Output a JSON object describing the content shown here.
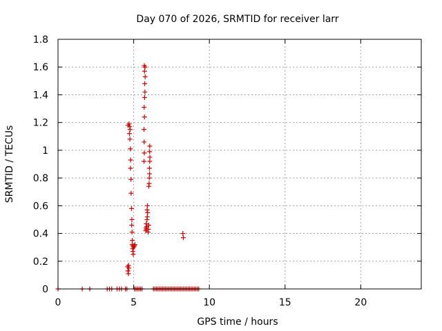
{
  "chart_data": {
    "type": "scatter",
    "title": "Day 070 of 2026, SRMTID for receiver larr",
    "xlabel": "GPS time / hours",
    "ylabel": "SRMTID / TECUs",
    "xlim": [
      0,
      24
    ],
    "ylim": [
      0,
      1.8
    ],
    "x_ticks": [
      0,
      5,
      10,
      15,
      20
    ],
    "x_tick_labels": [
      "0",
      "5",
      "10",
      "15",
      "20"
    ],
    "y_ticks": [
      0,
      0.2,
      0.4,
      0.6,
      0.8,
      1.0,
      1.2,
      1.4,
      1.6,
      1.8
    ],
    "y_tick_labels": [
      "0",
      "0.2",
      "0.4",
      "0.6",
      "0.8",
      "1",
      "1.2",
      "1.4",
      "1.6",
      "1.8"
    ],
    "grid": true,
    "marker": "+",
    "color": "#cc0000",
    "series": [
      {
        "name": "SRMTID",
        "points": [
          [
            0.0,
            0.0
          ],
          [
            1.6,
            0.0
          ],
          [
            2.1,
            0.0
          ],
          [
            3.25,
            0.0
          ],
          [
            3.4,
            0.0
          ],
          [
            3.55,
            0.0
          ],
          [
            3.9,
            0.0
          ],
          [
            4.05,
            0.0
          ],
          [
            4.2,
            0.0
          ],
          [
            4.45,
            0.0
          ],
          [
            4.55,
            0.0
          ],
          [
            5.05,
            0.0
          ],
          [
            5.15,
            0.0
          ],
          [
            5.25,
            0.0
          ],
          [
            5.35,
            0.0
          ],
          [
            5.45,
            0.0
          ],
          [
            5.55,
            0.0
          ],
          [
            6.3,
            0.0
          ],
          [
            6.4,
            0.0
          ],
          [
            6.5,
            0.0
          ],
          [
            6.6,
            0.0
          ],
          [
            6.7,
            0.0
          ],
          [
            6.8,
            0.0
          ],
          [
            6.9,
            0.0
          ],
          [
            7.0,
            0.0
          ],
          [
            7.1,
            0.0
          ],
          [
            7.2,
            0.0
          ],
          [
            7.3,
            0.0
          ],
          [
            7.4,
            0.0
          ],
          [
            7.5,
            0.0
          ],
          [
            7.6,
            0.0
          ],
          [
            7.7,
            0.0
          ],
          [
            7.8,
            0.0
          ],
          [
            7.9,
            0.0
          ],
          [
            8.0,
            0.0
          ],
          [
            8.1,
            0.0
          ],
          [
            8.2,
            0.0
          ],
          [
            8.3,
            0.0
          ],
          [
            8.4,
            0.0
          ],
          [
            8.5,
            0.0
          ],
          [
            8.6,
            0.0
          ],
          [
            8.7,
            0.0
          ],
          [
            8.8,
            0.0
          ],
          [
            8.9,
            0.0
          ],
          [
            9.0,
            0.0
          ],
          [
            9.1,
            0.0
          ],
          [
            9.2,
            0.0
          ],
          [
            9.3,
            0.0
          ],
          [
            4.65,
            0.11
          ],
          [
            4.62,
            0.13
          ],
          [
            4.68,
            0.15
          ],
          [
            4.6,
            0.16
          ],
          [
            4.66,
            0.17
          ],
          [
            4.63,
            1.18
          ],
          [
            4.7,
            1.19
          ],
          [
            4.74,
            1.17
          ],
          [
            4.76,
            1.15
          ],
          [
            4.72,
            1.12
          ],
          [
            4.75,
            1.08
          ],
          [
            4.78,
            1.01
          ],
          [
            4.8,
            0.93
          ],
          [
            4.79,
            0.87
          ],
          [
            4.82,
            0.79
          ],
          [
            4.83,
            0.69
          ],
          [
            4.86,
            0.58
          ],
          [
            4.88,
            0.5
          ],
          [
            4.87,
            0.46
          ],
          [
            4.89,
            0.41
          ],
          [
            4.91,
            0.35
          ],
          [
            4.9,
            0.32
          ],
          [
            4.93,
            0.29
          ],
          [
            4.95,
            0.27
          ],
          [
            4.97,
            0.25
          ],
          [
            5.0,
            0.3
          ],
          [
            5.05,
            0.31
          ],
          [
            5.08,
            0.32
          ],
          [
            4.94,
            0.31
          ],
          [
            5.7,
            1.61
          ],
          [
            5.75,
            1.6
          ],
          [
            5.72,
            1.57
          ],
          [
            5.76,
            1.53
          ],
          [
            5.73,
            1.48
          ],
          [
            5.74,
            1.42
          ],
          [
            5.72,
            1.38
          ],
          [
            5.69,
            1.31
          ],
          [
            5.71,
            1.24
          ],
          [
            5.68,
            1.15
          ],
          [
            5.69,
            1.06
          ],
          [
            5.7,
            0.98
          ],
          [
            5.68,
            0.92
          ],
          [
            5.8,
            0.42
          ],
          [
            5.82,
            0.44
          ],
          [
            5.84,
            0.43
          ],
          [
            5.86,
            0.45
          ],
          [
            5.83,
            0.47
          ],
          [
            5.88,
            0.5
          ],
          [
            5.9,
            0.52
          ],
          [
            5.92,
            0.55
          ],
          [
            5.89,
            0.57
          ],
          [
            5.91,
            0.6
          ],
          [
            6.0,
            0.74
          ],
          [
            6.02,
            0.76
          ],
          [
            6.03,
            0.8
          ],
          [
            6.05,
            0.83
          ],
          [
            6.04,
            0.87
          ],
          [
            6.06,
            0.92
          ],
          [
            6.07,
            0.95
          ],
          [
            6.05,
            0.99
          ],
          [
            6.06,
            1.03
          ],
          [
            5.95,
            0.41
          ],
          [
            5.97,
            0.43
          ],
          [
            5.99,
            0.46
          ],
          [
            8.25,
            0.4
          ],
          [
            8.28,
            0.37
          ]
        ]
      }
    ]
  }
}
